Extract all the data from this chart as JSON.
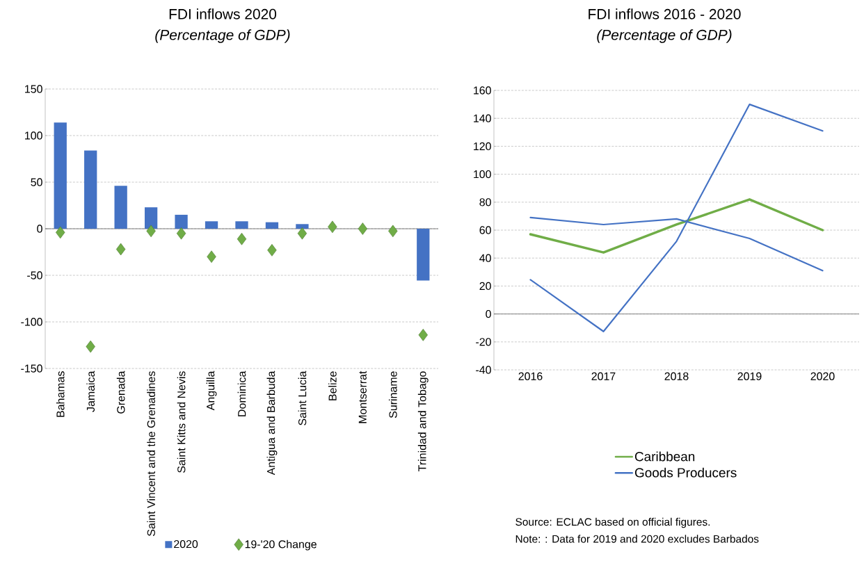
{
  "chart_data": [
    {
      "type": "bar",
      "title": "FDI inflows 2020",
      "subtitle": "(Percentage of GDP)",
      "categories": [
        "Bahamas",
        "Jamaica",
        "Grenada",
        "Saint Vincent and the Grenadines",
        "Saint Kitts and Nevis",
        "Anguilla",
        "Dominica",
        "Antigua and Barbuda",
        "Saint Lucia",
        "Belize",
        "Montserrat",
        "Suriname",
        "Trinidad and Tobago"
      ],
      "series": [
        {
          "name": "2020",
          "color": "#4472c4",
          "values": [
            114,
            84,
            46,
            23,
            15,
            8,
            8,
            7,
            5,
            null,
            null,
            null,
            -55.5
          ]
        },
        {
          "name": "19-'20 Change",
          "type": "scatter",
          "marker": "diamond",
          "color": "#70ad47",
          "values": [
            -4,
            -126.5,
            -22,
            -2.5,
            -5,
            -30,
            -11,
            -23,
            -5,
            2,
            0,
            -2.5,
            -114
          ]
        }
      ],
      "ylim": [
        -150,
        150
      ],
      "yticks": [
        -150,
        -100,
        -50,
        0,
        50,
        100,
        150
      ],
      "grid": "y",
      "legend": "bottom"
    },
    {
      "type": "line",
      "title": "FDI inflows 2016 - 2020",
      "subtitle": "(Percentage of GDP)",
      "categories": [
        "2016",
        "2017",
        "2018",
        "2019",
        "2020"
      ],
      "series": [
        {
          "name": "Caribbean",
          "color": "#70ad47",
          "values": [
            57,
            44,
            64,
            82,
            60
          ]
        },
        {
          "name": "Goods Producers",
          "color": "#4472c4",
          "values": [
            69,
            64,
            68,
            54,
            31
          ]
        },
        {
          "color": "#4472c4",
          "values": [
            24.5,
            -12.5,
            52,
            150,
            131
          ]
        }
      ],
      "ylim": [
        -40,
        160
      ],
      "yticks": [
        -40,
        -20,
        0,
        20,
        40,
        60,
        80,
        100,
        120,
        140,
        160
      ],
      "grid": "y",
      "legend": "bottom",
      "annotations": [
        "Source: ECLAC based on official figures.",
        "Note: : Data for 2019 and 2020 excludes Barbados"
      ]
    }
  ]
}
